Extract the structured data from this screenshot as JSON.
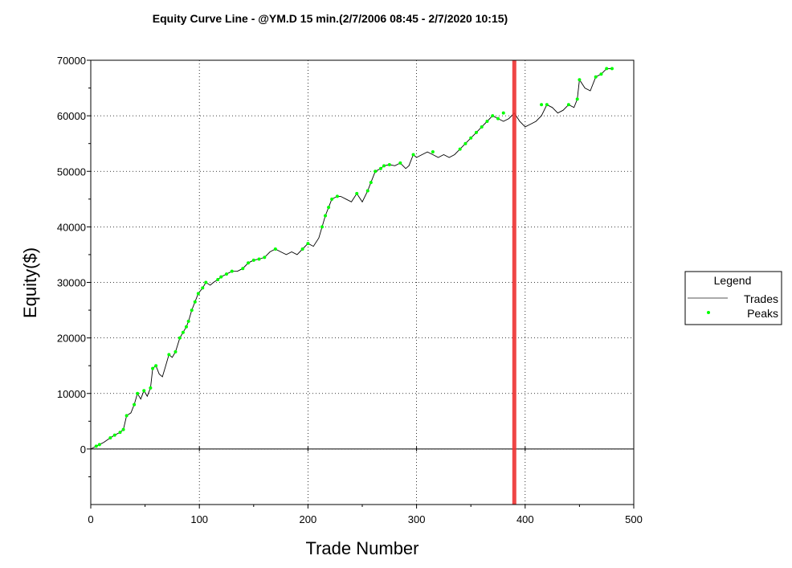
{
  "chart_data": {
    "type": "line",
    "title": "Equity Curve Line - @YM.D 15 min.(2/7/2006 08:45 - 2/7/2020 10:15)",
    "xlabel": "Trade Number",
    "ylabel": "Equity($)",
    "xlim": [
      0,
      500
    ],
    "ylim": [
      -10000,
      70000
    ],
    "x_ticks": [
      0,
      100,
      200,
      300,
      400,
      500
    ],
    "y_ticks": [
      0,
      10000,
      20000,
      30000,
      40000,
      50000,
      60000,
      70000
    ],
    "grid": true,
    "legend_position": "right",
    "legend": {
      "title": "Legend",
      "entries": [
        {
          "name": "Trades",
          "style": "line",
          "color": "#000000"
        },
        {
          "name": "Peaks",
          "style": "marker",
          "color": "#00ff00"
        }
      ]
    },
    "marker_line": {
      "x": 390,
      "color": "#ee3333"
    },
    "series": [
      {
        "name": "Trades",
        "x": [
          0,
          5,
          8,
          12,
          18,
          22,
          27,
          30,
          33,
          37,
          40,
          43,
          46,
          49,
          52,
          55,
          57,
          60,
          63,
          66,
          69,
          72,
          75,
          78,
          82,
          85,
          88,
          90,
          93,
          96,
          99,
          103,
          106,
          110,
          113,
          117,
          120,
          125,
          130,
          135,
          140,
          145,
          150,
          155,
          160,
          165,
          170,
          175,
          180,
          185,
          190,
          195,
          200,
          205,
          210,
          213,
          216,
          219,
          222,
          227,
          230,
          235,
          240,
          245,
          250,
          255,
          258,
          262,
          267,
          270,
          275,
          280,
          285,
          290,
          293,
          297,
          300,
          305,
          310,
          315,
          320,
          325,
          330,
          335,
          340,
          345,
          350,
          355,
          360,
          365,
          370,
          375,
          380,
          385,
          390,
          395,
          400,
          405,
          410,
          415,
          420,
          425,
          430,
          435,
          440,
          445,
          448,
          450,
          455,
          460,
          465,
          470,
          475,
          480
        ],
        "values": [
          0,
          500,
          800,
          1200,
          2000,
          2500,
          3000,
          3500,
          6000,
          6500,
          8000,
          10000,
          9000,
          10500,
          9500,
          11000,
          14500,
          15000,
          13500,
          13000,
          15000,
          17000,
          16500,
          17500,
          20000,
          21000,
          22000,
          23000,
          25000,
          26500,
          28000,
          29000,
          30000,
          29500,
          30000,
          30500,
          31000,
          31500,
          32000,
          32000,
          32500,
          33500,
          34000,
          34200,
          34500,
          35500,
          36000,
          35500,
          35000,
          35500,
          35000,
          36000,
          37000,
          36500,
          38000,
          40000,
          42000,
          43500,
          45000,
          45500,
          45500,
          45000,
          44500,
          46000,
          44500,
          46500,
          48000,
          50000,
          50500,
          51000,
          51200,
          51000,
          51500,
          50500,
          51000,
          53000,
          52500,
          53000,
          53500,
          53000,
          52500,
          53000,
          52500,
          53000,
          54000,
          55000,
          56000,
          57000,
          58000,
          59000,
          60000,
          59500,
          59000,
          59500,
          60500,
          59000,
          58000,
          58500,
          59000,
          60000,
          62000,
          61500,
          60500,
          61000,
          62000,
          61500,
          63000,
          66500,
          65000,
          64500,
          67000,
          67500,
          68500,
          68500
        ]
      },
      {
        "name": "Peaks",
        "x": [
          5,
          8,
          18,
          22,
          27,
          30,
          33,
          40,
          43,
          49,
          55,
          57,
          60,
          72,
          78,
          82,
          85,
          88,
          90,
          93,
          96,
          99,
          103,
          106,
          117,
          120,
          125,
          130,
          140,
          145,
          150,
          155,
          160,
          170,
          195,
          200,
          213,
          216,
          219,
          222,
          227,
          245,
          255,
          258,
          262,
          267,
          270,
          275,
          285,
          297,
          315,
          340,
          345,
          350,
          355,
          360,
          365,
          370,
          375,
          380,
          415,
          420,
          440,
          448,
          450,
          465,
          470,
          475,
          480
        ],
        "values": [
          500,
          800,
          2000,
          2500,
          3000,
          3500,
          6000,
          8000,
          10000,
          10500,
          11000,
          14500,
          15000,
          17000,
          17500,
          20000,
          21000,
          22000,
          23000,
          25000,
          26500,
          28000,
          29000,
          30000,
          30500,
          31000,
          31500,
          32000,
          32500,
          33500,
          34000,
          34200,
          34500,
          36000,
          36000,
          37000,
          40000,
          42000,
          43500,
          45000,
          45500,
          46000,
          46500,
          48000,
          50000,
          50500,
          51000,
          51200,
          51500,
          53000,
          53500,
          54000,
          55000,
          56000,
          57000,
          58000,
          59000,
          60000,
          59500,
          60500,
          62000,
          62000,
          62000,
          63000,
          66500,
          67000,
          67500,
          68500,
          68500
        ]
      }
    ]
  }
}
